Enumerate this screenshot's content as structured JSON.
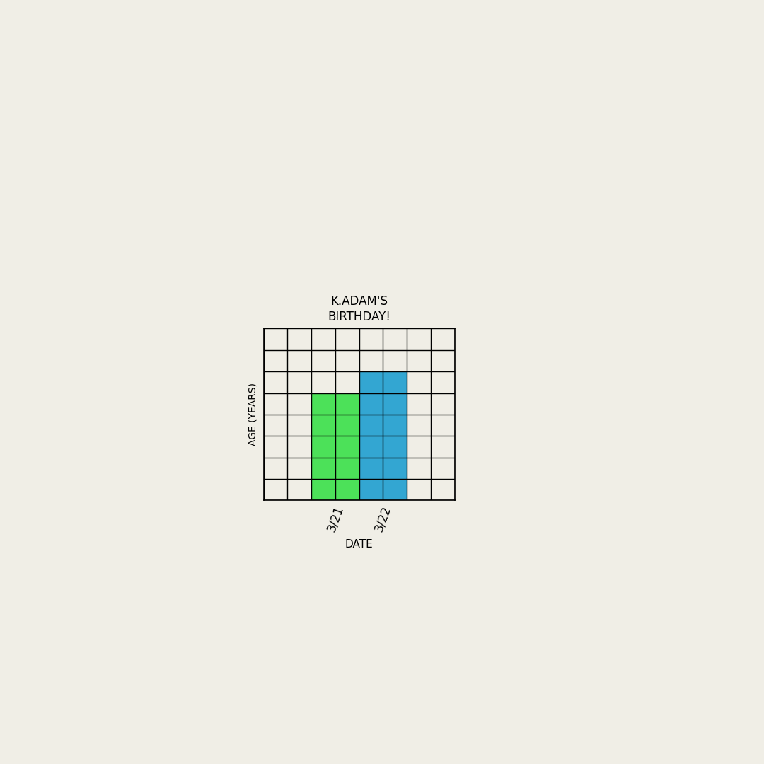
{
  "chart_data": {
    "type": "bar",
    "title": "K.ADAM'S\nBIRTHDAY!",
    "x_label": "DATE",
    "y_label": "AGE (YEARS)",
    "categories": [
      "3/21",
      "3/22"
    ],
    "values": [
      5,
      6
    ],
    "colors": [
      "#3ae04a",
      "#1e9fd0"
    ],
    "ylim": [
      0,
      8
    ],
    "yticks": [
      0,
      1,
      2,
      3,
      4,
      5,
      6,
      7,
      8
    ],
    "grid": true,
    "tick_labels": "x"
  }
}
